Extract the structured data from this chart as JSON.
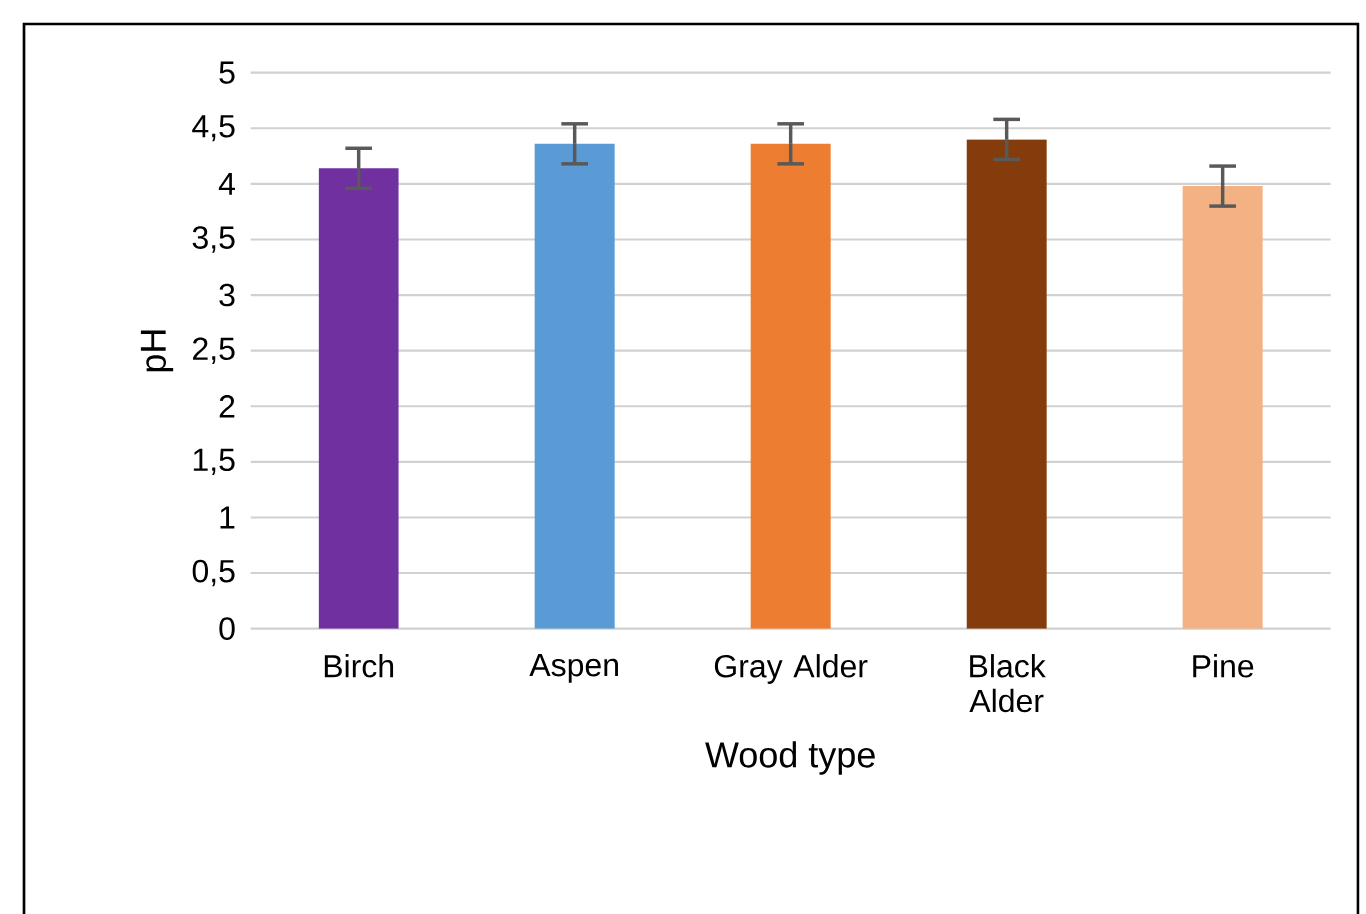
{
  "chart_data": {
    "type": "bar",
    "xlabel": "Wood type",
    "ylabel": "pH",
    "categories": [
      "Birch",
      "Aspen",
      "Gray Alder",
      "Black Alder",
      "Pine"
    ],
    "values": [
      4.14,
      4.36,
      4.36,
      4.4,
      3.98
    ],
    "errors": [
      0.18,
      0.18,
      0.18,
      0.18,
      0.18
    ],
    "colors": [
      "#7030a0",
      "#5b9bd5",
      "#ed7d31",
      "#843c0c",
      "#f4b183"
    ],
    "ylim": [
      0,
      5
    ],
    "yticks": [
      0,
      {
        "value": 0.5,
        "label": "0,5"
      },
      1,
      {
        "value": 1.5,
        "label": "1,5"
      },
      2,
      {
        "value": 2.5,
        "label": "2,5"
      },
      3,
      {
        "value": 3.5,
        "label": "3,5"
      },
      4,
      {
        "value": 4.5,
        "label": "4,5"
      },
      5
    ],
    "grid": "y"
  }
}
